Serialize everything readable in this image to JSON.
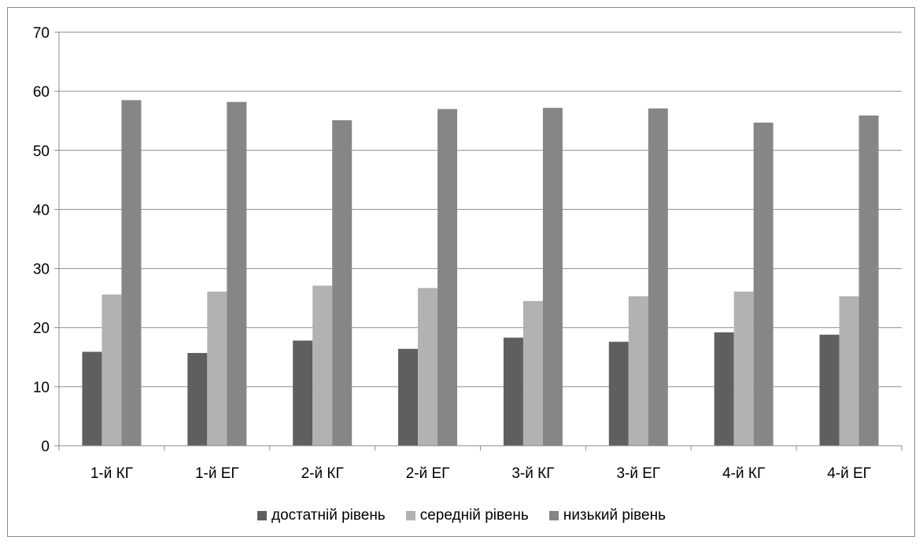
{
  "chart_data": {
    "type": "bar",
    "title": "",
    "xlabel": "",
    "ylabel": "",
    "ylim": [
      0,
      70
    ],
    "yticks": [
      0,
      10,
      20,
      30,
      40,
      50,
      60,
      70
    ],
    "grid": true,
    "legend_position": "bottom",
    "categories": [
      "1-й КГ",
      "1-й ЕГ",
      "2-й КГ",
      "2-й ЕГ",
      "3-й КГ",
      "3-й ЕГ",
      "4-й КГ",
      "4-й ЕГ"
    ],
    "series": [
      {
        "name": "достатній рівень",
        "color": "#5f5f5f",
        "values": [
          15.9,
          15.7,
          17.8,
          16.4,
          18.3,
          17.6,
          19.2,
          18.8
        ]
      },
      {
        "name": "середній рівень",
        "color": "#b2b2b2",
        "values": [
          25.6,
          26.1,
          27.1,
          26.7,
          24.5,
          25.3,
          26.1,
          25.3
        ]
      },
      {
        "name": "низький рівень",
        "color": "#868686",
        "values": [
          58.5,
          58.2,
          55.1,
          57.0,
          57.2,
          57.1,
          54.7,
          55.9
        ]
      }
    ]
  }
}
